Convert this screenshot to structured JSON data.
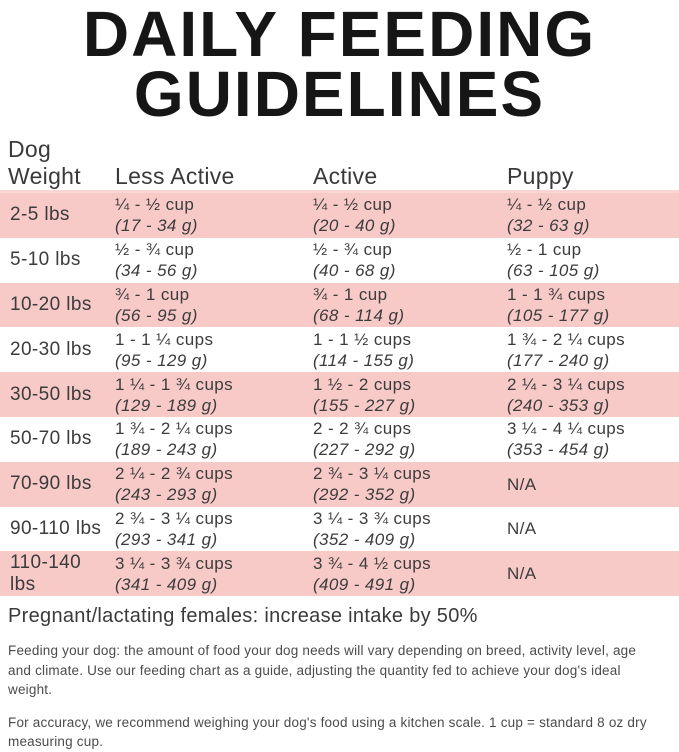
{
  "title": "DAILY FEEDING GUIDELINES",
  "table": {
    "columns": {
      "weight": "Dog Weight",
      "less_active": "Less Active",
      "active": "Active",
      "puppy": "Puppy"
    },
    "rows": [
      {
        "weight": "2-5 lbs",
        "less_active": {
          "cups": "¼ - ½ cup",
          "grams": "(17 - 34 g)"
        },
        "active": {
          "cups": "¼ - ½ cup",
          "grams": "(20 - 40 g)"
        },
        "puppy": {
          "cups": "¼ - ½ cup",
          "grams": "(32 - 63 g)"
        }
      },
      {
        "weight": "5-10 lbs",
        "less_active": {
          "cups": "½ - ¾ cup",
          "grams": "(34 - 56 g)"
        },
        "active": {
          "cups": "½ - ¾ cup",
          "grams": "(40 - 68 g)"
        },
        "puppy": {
          "cups": "½ - 1 cup",
          "grams": "(63 - 105 g)"
        }
      },
      {
        "weight": "10-20 lbs",
        "less_active": {
          "cups": "¾ - 1 cup",
          "grams": "(56 - 95 g)"
        },
        "active": {
          "cups": "¾ - 1 cup",
          "grams": "(68 - 114 g)"
        },
        "puppy": {
          "cups": "1 - 1 ¾ cups",
          "grams": "(105 - 177 g)"
        }
      },
      {
        "weight": "20-30 lbs",
        "less_active": {
          "cups": "1 - 1 ¼ cups",
          "grams": "(95 - 129 g)"
        },
        "active": {
          "cups": "1 - 1 ½ cups",
          "grams": "(114 - 155 g)"
        },
        "puppy": {
          "cups": "1 ¾ - 2 ¼ cups",
          "grams": "(177 - 240 g)"
        }
      },
      {
        "weight": "30-50 lbs",
        "less_active": {
          "cups": "1 ¼ - 1 ¾ cups",
          "grams": "(129 - 189 g)"
        },
        "active": {
          "cups": "1 ½ - 2 cups",
          "grams": "(155 - 227 g)"
        },
        "puppy": {
          "cups": "2 ¼ - 3 ¼ cups",
          "grams": "(240 - 353 g)"
        }
      },
      {
        "weight": "50-70 lbs",
        "less_active": {
          "cups": "1 ¾ - 2 ¼ cups",
          "grams": "(189 - 243 g)"
        },
        "active": {
          "cups": "2 - 2 ¾ cups",
          "grams": "(227 - 292 g)"
        },
        "puppy": {
          "cups": "3 ¼ - 4 ¼ cups",
          "grams": "(353 - 454 g)"
        }
      },
      {
        "weight": "70-90 lbs",
        "less_active": {
          "cups": "2 ¼ - 2 ¾ cups",
          "grams": "(243 - 293 g)"
        },
        "active": {
          "cups": "2 ¾ - 3 ¼ cups",
          "grams": "(292 - 352 g)"
        },
        "puppy": {
          "cups": "N/A",
          "grams": ""
        }
      },
      {
        "weight": "90-110 lbs",
        "less_active": {
          "cups": "2 ¾ - 3 ¼ cups",
          "grams": "(293 - 341 g)"
        },
        "active": {
          "cups": "3 ¼ - 3 ¾ cups",
          "grams": "(352 - 409 g)"
        },
        "puppy": {
          "cups": "N/A",
          "grams": ""
        }
      },
      {
        "weight": "110-140 lbs",
        "less_active": {
          "cups": "3 ¼ - 3 ¾ cups",
          "grams": "(341 - 409 g)"
        },
        "active": {
          "cups": "3 ¾ - 4 ½ cups",
          "grams": "(409 - 491 g)"
        },
        "puppy": {
          "cups": "N/A",
          "grams": ""
        }
      }
    ]
  },
  "notes": {
    "pregnant": "Pregnant/lactating females: increase intake by 50%",
    "feeding": "Feeding your dog: the amount of food your dog needs will vary depending on breed, activity level, age and climate. Use our feeding chart as a guide, adjusting the quantity fed to achieve your dog's ideal weight.",
    "accuracy": "For accuracy, we recommend weighing your dog's food using a kitchen scale. 1 cup = standard 8 oz dry measuring cup."
  },
  "colors": {
    "row_pink": "#f7c9c7",
    "divider_pink": "#f9d6d4",
    "title_black": "#161616",
    "text_dark": "#3e3e3e"
  }
}
